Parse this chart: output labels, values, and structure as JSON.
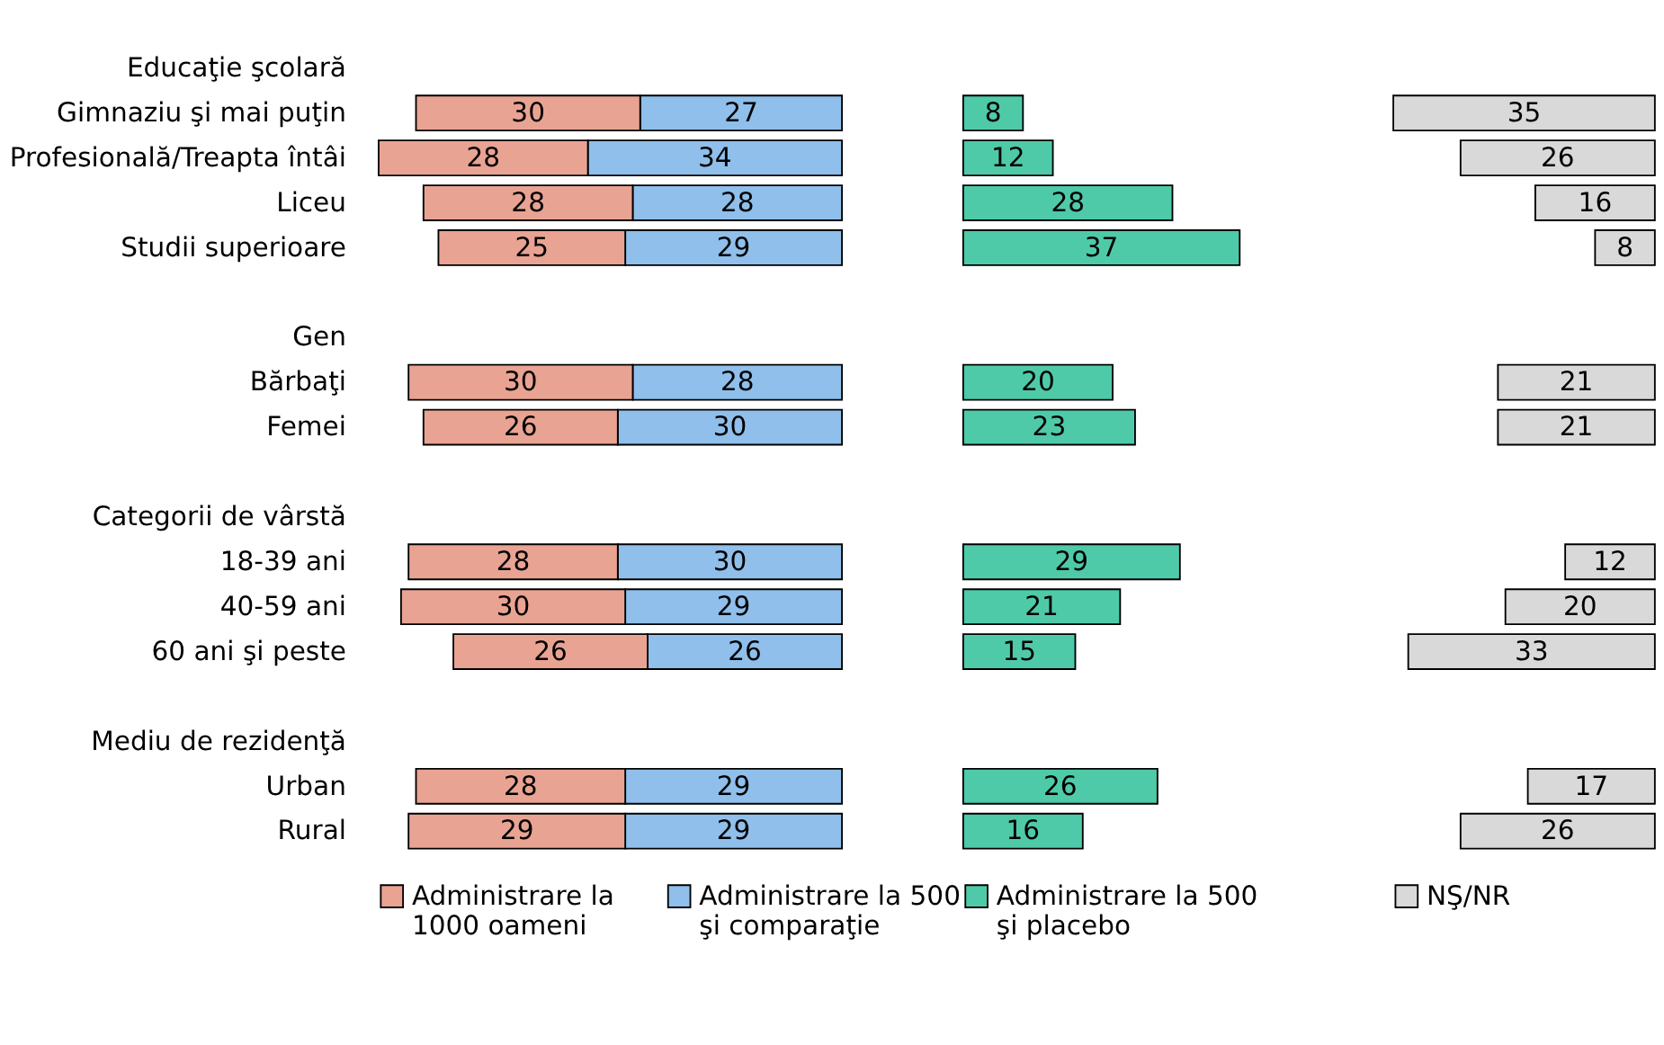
{
  "chart_data": [
    {
      "type": "bar",
      "orientation": "horizontal",
      "stacked": true,
      "data_labels": true,
      "legend": "bottom",
      "grid": false,
      "xlim": [
        62,
        0
      ],
      "categories": [
        "Educaţie şcolară",
        "Gimnaziu şi mai puţin",
        "Profesională/Treapta întâi",
        "Liceu",
        "Studii superioare",
        null,
        "Gen",
        "Bărbaţi",
        "Femei",
        null,
        "Categorii de vârstă",
        "18-39 ani",
        "40-59 ani",
        "60 ani şi peste",
        null,
        "Mediu de rezidenţă",
        "Urban",
        "Rural"
      ],
      "series": [
        {
          "name": "Administrare la 500 şi comparaţie",
          "color": "#8fbfea",
          "values": [
            null,
            27,
            34,
            28,
            29,
            null,
            null,
            28,
            30,
            null,
            null,
            30,
            29,
            26,
            null,
            null,
            29,
            29
          ]
        },
        {
          "name": "Administrare la 1000 oameni",
          "color": "#e9a393",
          "values": [
            null,
            30,
            28,
            28,
            25,
            null,
            null,
            30,
            26,
            null,
            null,
            28,
            30,
            26,
            null,
            null,
            28,
            29
          ]
        }
      ]
    },
    {
      "type": "bar",
      "orientation": "horizontal",
      "data_labels": true,
      "legend": "bottom",
      "grid": false,
      "xlim": [
        0,
        37
      ],
      "categories": [
        null,
        null,
        null,
        null,
        null,
        null,
        null,
        null,
        null,
        null,
        null,
        null,
        null,
        null,
        null,
        null,
        null,
        null
      ],
      "series": [
        {
          "name": "Administrare la 500 şi placebo",
          "color": "#4fcaa9",
          "values": [
            null,
            8,
            12,
            28,
            37,
            null,
            null,
            20,
            23,
            null,
            null,
            29,
            21,
            15,
            null,
            null,
            26,
            16
          ]
        }
      ]
    },
    {
      "type": "bar",
      "orientation": "horizontal",
      "data_labels": true,
      "legend": "bottom",
      "grid": false,
      "xlim": [
        35,
        0
      ],
      "categories": [
        null,
        null,
        null,
        null,
        null,
        null,
        null,
        null,
        null,
        null,
        null,
        null,
        null,
        null,
        null,
        null,
        null,
        null
      ],
      "series": [
        {
          "name": "NŞ/NR",
          "color": "#d9d9d9",
          "values": [
            null,
            35,
            26,
            16,
            8,
            null,
            null,
            21,
            21,
            null,
            null,
            12,
            20,
            33,
            null,
            null,
            17,
            26
          ]
        }
      ]
    }
  ]
}
